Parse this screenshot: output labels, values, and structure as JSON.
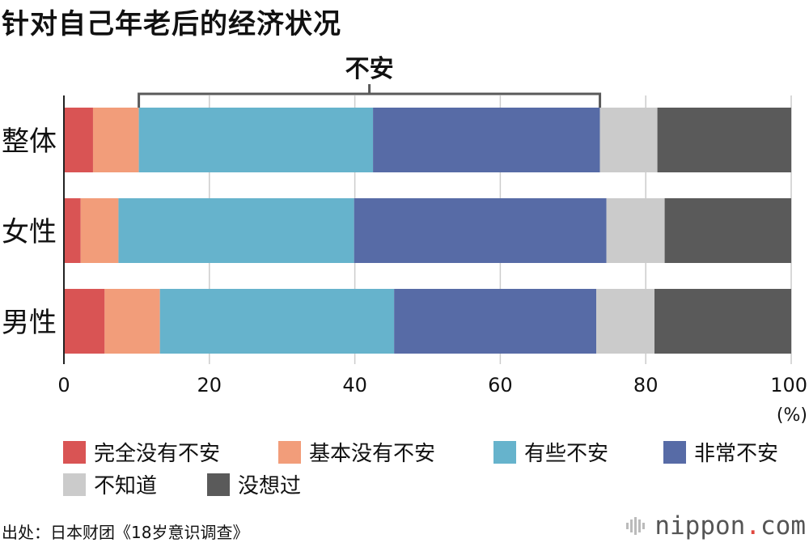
{
  "title": "针对自己年老后的经济状况",
  "chart_data": {
    "type": "bar",
    "orientation": "horizontal",
    "stacked": true,
    "categories": [
      "整体",
      "女性",
      "男性"
    ],
    "series": [
      {
        "name": "完全没有不安",
        "color": "#d95454",
        "values": [
          4.0,
          2.3,
          5.6
        ]
      },
      {
        "name": "基本没有不安",
        "color": "#f29d7a",
        "values": [
          6.3,
          5.2,
          7.6
        ]
      },
      {
        "name": "有些不安",
        "color": "#66b3cc",
        "values": [
          32.2,
          32.4,
          32.2
        ]
      },
      {
        "name": "非常不安",
        "color": "#576ba6",
        "values": [
          31.2,
          34.7,
          27.8
        ]
      },
      {
        "name": "不知道",
        "color": "#cbcbcb",
        "values": [
          7.9,
          8.0,
          8.0
        ]
      },
      {
        "name": "没想过",
        "color": "#5a5a5a",
        "values": [
          18.4,
          17.4,
          18.8
        ]
      }
    ],
    "xlim": [
      0,
      100
    ],
    "xticks": [
      "0",
      "20",
      "40",
      "60",
      "80",
      "100"
    ],
    "xunit": "(%)",
    "grid": true,
    "legend_position": "bottom",
    "annotation": {
      "label": "不安",
      "from": 10.3,
      "to": 73.7
    }
  },
  "source": "出处：日本财团《18岁意识调查》",
  "brand": {
    "name": "nippon",
    "dot": ".",
    "tld": "com"
  }
}
